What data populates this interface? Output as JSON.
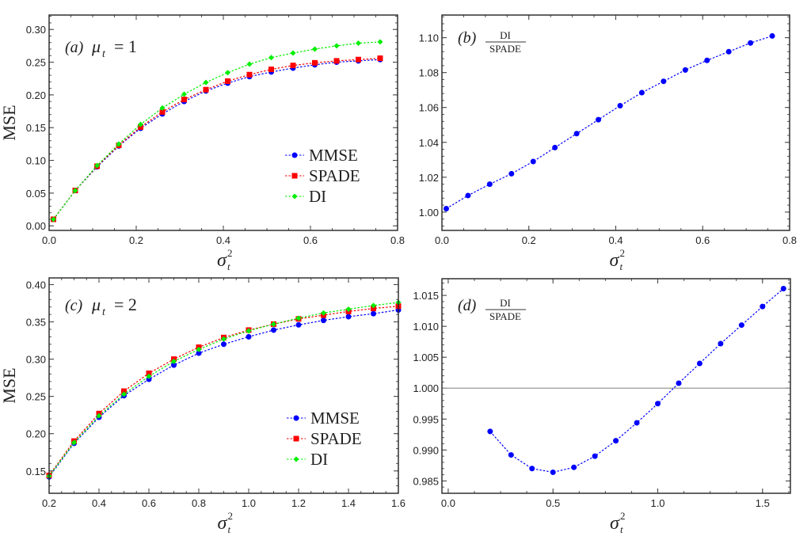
{
  "chart_data": [
    {
      "type": "line",
      "panel": "a",
      "label": {
        "tag": "(a)",
        "expr": "μ",
        "sub": "t",
        "rhs": "= 1"
      },
      "xlabel": {
        "base": "σ",
        "sup": "2",
        "sub": "t"
      },
      "ylabel": "MSE",
      "xlim": [
        0,
        0.8
      ],
      "ylim": [
        -0.007,
        0.322
      ],
      "xticks": [
        "0.0",
        "0.2",
        "0.4",
        "0.6",
        "0.8"
      ],
      "yticks": [
        "0.00",
        "0.05",
        "0.10",
        "0.15",
        "0.20",
        "0.25",
        "0.30"
      ],
      "legend": "right-center",
      "x": [
        0.01,
        0.06,
        0.11,
        0.16,
        0.21,
        0.26,
        0.31,
        0.36,
        0.41,
        0.46,
        0.51,
        0.56,
        0.61,
        0.66,
        0.71,
        0.76
      ],
      "series": [
        {
          "name": "MMSE",
          "color": "#0000ff",
          "marker": "circle",
          "values": [
            0.01,
            0.054,
            0.09,
            0.122,
            0.149,
            0.171,
            0.19,
            0.206,
            0.218,
            0.228,
            0.235,
            0.241,
            0.246,
            0.25,
            0.252,
            0.254
          ]
        },
        {
          "name": "SPADE",
          "color": "#ff0000",
          "marker": "square",
          "values": [
            0.01,
            0.054,
            0.091,
            0.123,
            0.151,
            0.174,
            0.193,
            0.208,
            0.221,
            0.231,
            0.239,
            0.245,
            0.249,
            0.252,
            0.254,
            0.256
          ]
        },
        {
          "name": "DI",
          "color": "#00ee00",
          "marker": "diamond",
          "values": [
            0.01,
            0.054,
            0.092,
            0.125,
            0.155,
            0.18,
            0.201,
            0.219,
            0.234,
            0.247,
            0.257,
            0.264,
            0.27,
            0.275,
            0.279,
            0.281
          ]
        }
      ]
    },
    {
      "type": "line",
      "panel": "b",
      "label": {
        "tag": "(b)",
        "num": "DI",
        "den": "SPADE"
      },
      "xlabel": {
        "base": "σ",
        "sup": "2",
        "sub": "t"
      },
      "ylabel": "",
      "xlim": [
        0,
        0.8
      ],
      "ylim": [
        0.9895,
        1.113
      ],
      "xticks": [
        "0.0",
        "0.2",
        "0.4",
        "0.6",
        "0.8"
      ],
      "yticks": [
        "1.00",
        "1.02",
        "1.04",
        "1.06",
        "1.08",
        "1.10"
      ],
      "x": [
        0.01,
        0.06,
        0.11,
        0.16,
        0.21,
        0.26,
        0.31,
        0.36,
        0.41,
        0.46,
        0.51,
        0.56,
        0.61,
        0.66,
        0.71,
        0.76
      ],
      "series": [
        {
          "color": "#0000ff",
          "marker": "circle",
          "values": [
            1.002,
            1.0095,
            1.016,
            1.022,
            1.029,
            1.037,
            1.045,
            1.053,
            1.061,
            1.0685,
            1.075,
            1.0815,
            1.087,
            1.092,
            1.097,
            1.101
          ]
        }
      ]
    },
    {
      "type": "line",
      "panel": "c",
      "label": {
        "tag": "(c)",
        "expr": "μ",
        "sub": "t",
        "rhs": "= 2"
      },
      "xlabel": {
        "base": "σ",
        "sup": "2",
        "sub": "t"
      },
      "ylabel": "MSE",
      "xlim": [
        0.2,
        1.6
      ],
      "ylim": [
        0.12,
        0.409
      ],
      "xticks": [
        "0.2",
        "0.4",
        "0.6",
        "0.8",
        "1.0",
        "1.2",
        "1.4",
        "1.6"
      ],
      "yticks": [
        "0.15",
        "0.20",
        "0.25",
        "0.30",
        "0.35",
        "0.40"
      ],
      "legend": "bottom-right",
      "x": [
        0.2,
        0.3,
        0.4,
        0.5,
        0.6,
        0.7,
        0.8,
        0.9,
        1.0,
        1.1,
        1.2,
        1.3,
        1.4,
        1.5,
        1.6
      ],
      "series": [
        {
          "name": "MMSE",
          "color": "#0000ff",
          "marker": "circle",
          "values": [
            0.142,
            0.187,
            0.222,
            0.251,
            0.273,
            0.292,
            0.308,
            0.32,
            0.33,
            0.339,
            0.346,
            0.352,
            0.357,
            0.361,
            0.366
          ]
        },
        {
          "name": "SPADE",
          "color": "#ff0000",
          "marker": "square",
          "values": [
            0.144,
            0.19,
            0.227,
            0.257,
            0.281,
            0.3,
            0.316,
            0.329,
            0.339,
            0.347,
            0.354,
            0.359,
            0.364,
            0.368,
            0.371
          ]
        },
        {
          "name": "DI",
          "color": "#00ee00",
          "marker": "diamond",
          "values": [
            0.143,
            0.188,
            0.224,
            0.253,
            0.277,
            0.297,
            0.313,
            0.327,
            0.338,
            0.347,
            0.355,
            0.362,
            0.367,
            0.372,
            0.376
          ]
        }
      ]
    },
    {
      "type": "line",
      "panel": "d",
      "label": {
        "tag": "(d)",
        "num": "DI",
        "den": "SPADE"
      },
      "xlabel": {
        "base": "σ",
        "sup": "2",
        "sub": "t"
      },
      "ylabel": "",
      "xlim": [
        -0.03,
        1.633
      ],
      "ylim": [
        0.983,
        1.0177
      ],
      "xticks": [
        "0.0",
        "0.5",
        "1.0",
        "1.5"
      ],
      "yticks": [
        "0.985",
        "0.990",
        "0.995",
        "1.000",
        "1.005",
        "1.010",
        "1.015"
      ],
      "reference_line": 1.0,
      "x": [
        0.2,
        0.3,
        0.4,
        0.5,
        0.6,
        0.7,
        0.8,
        0.9,
        1.0,
        1.1,
        1.2,
        1.3,
        1.4,
        1.5,
        1.6
      ],
      "series": [
        {
          "color": "#0000ff",
          "marker": "circle",
          "values": [
            0.993,
            0.9892,
            0.987,
            0.9864,
            0.9872,
            0.989,
            0.9915,
            0.9944,
            0.9975,
            1.0008,
            1.004,
            1.0072,
            1.0102,
            1.0132,
            1.0161
          ]
        }
      ]
    }
  ]
}
